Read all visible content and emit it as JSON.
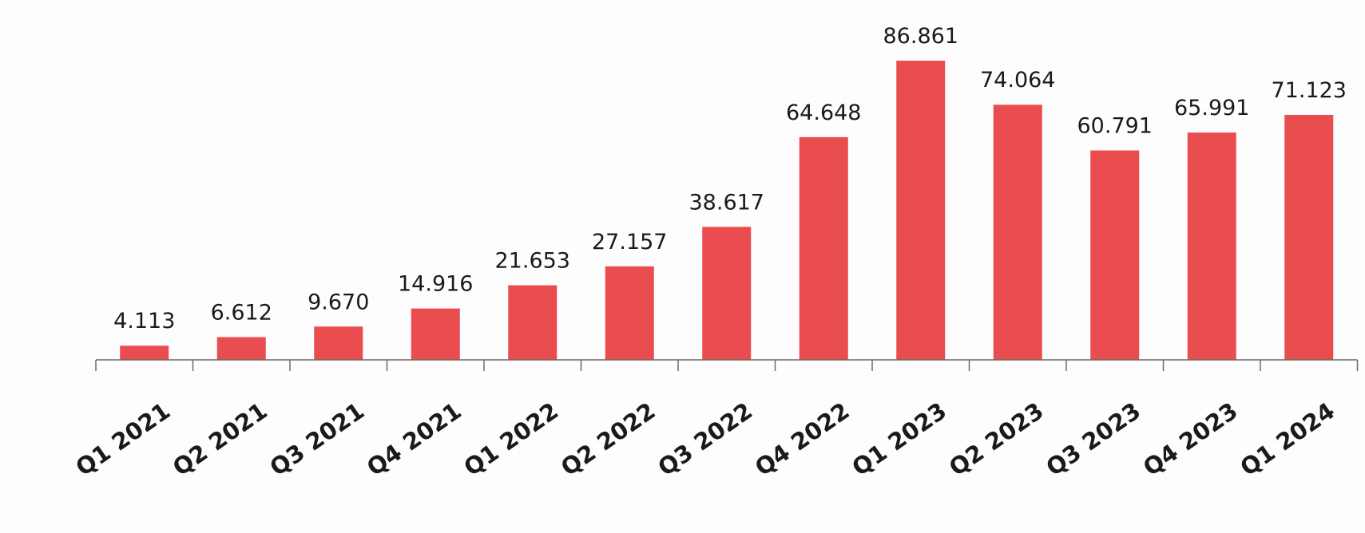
{
  "chart_data": {
    "type": "bar",
    "title": "",
    "xlabel": "",
    "ylabel": "",
    "categories": [
      "Q1 2021",
      "Q2 2021",
      "Q3 2021",
      "Q4 2021",
      "Q1 2022",
      "Q2 2022",
      "Q3 2022",
      "Q4 2022",
      "Q1 2023",
      "Q2 2023",
      "Q3 2023",
      "Q4 2023",
      "Q1 2024"
    ],
    "values": [
      4.113,
      6.612,
      9.67,
      14.916,
      21.653,
      27.157,
      38.617,
      64.648,
      86.861,
      74.064,
      60.791,
      65.991,
      71.123
    ],
    "value_labels": [
      "4.113",
      "6.612",
      "9.670",
      "14.916",
      "21.653",
      "27.157",
      "38.617",
      "64.648",
      "86.861",
      "74.064",
      "60.791",
      "65.991",
      "71.123"
    ],
    "ylim": [
      0,
      86.861
    ],
    "grid": false,
    "legend": "none",
    "bar_color": "#ea4d4f",
    "axis_color": "#6b6b6b"
  }
}
